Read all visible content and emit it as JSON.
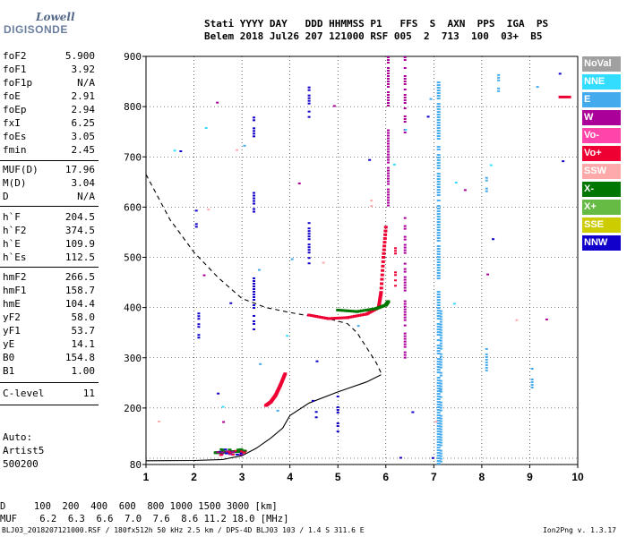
{
  "logo": {
    "line1": "Lowell",
    "line2": "DIGISONDE"
  },
  "header": {
    "line1": "Stati YYYY DAY   DDD HHMMSS P1   FFS  S  AXN  PPS  IGA  PS",
    "line2": "Belem 2018 Jul26 207 121000 RSF 005  2  713  100  03+  B5"
  },
  "params": [
    {
      "k": "foF2",
      "v": "5.900"
    },
    {
      "k": "foF1",
      "v": "3.92"
    },
    {
      "k": "foF1p",
      "v": "N/A"
    },
    {
      "k": "foE",
      "v": "2.91"
    },
    {
      "k": "foEp",
      "v": "2.94"
    },
    {
      "k": "fxI",
      "v": "6.25"
    },
    {
      "k": "foEs",
      "v": "3.05"
    },
    {
      "k": "fmin",
      "v": "2.45"
    },
    {
      "k": "MUF(D)",
      "v": "17.96"
    },
    {
      "k": "M(D)",
      "v": "3.04"
    },
    {
      "k": "D",
      "v": "N/A"
    },
    {
      "k": "h`F",
      "v": "204.5"
    },
    {
      "k": "h`F2",
      "v": "374.5"
    },
    {
      "k": "h`E",
      "v": "109.9"
    },
    {
      "k": "h`Es",
      "v": "112.5"
    },
    {
      "k": "hmF2",
      "v": "266.5"
    },
    {
      "k": "hmF1",
      "v": "158.7"
    },
    {
      "k": "hmE",
      "v": "104.4"
    },
    {
      "k": "yF2",
      "v": "58.0"
    },
    {
      "k": "yF1",
      "v": "53.7"
    },
    {
      "k": "yE",
      "v": "14.1"
    },
    {
      "k": "B0",
      "v": "154.8"
    },
    {
      "k": "B1",
      "v": "1.00"
    },
    {
      "k": "C-level",
      "v": "11"
    }
  ],
  "auto": {
    "line1": "Auto:",
    "line2": "Artist5",
    "line3": "500200"
  },
  "legend": [
    {
      "label": "NoVal",
      "color": "#a0a0a0"
    },
    {
      "label": "NNE",
      "color": "#33ddff"
    },
    {
      "label": "E",
      "color": "#44aaee"
    },
    {
      "label": "W",
      "color": "#aa0099"
    },
    {
      "label": "Vo-",
      "color": "#ff44aa"
    },
    {
      "label": "Vo+",
      "color": "#ee0033"
    },
    {
      "label": "SSW",
      "color": "#ffaaaa"
    },
    {
      "label": "X-",
      "color": "#007700"
    },
    {
      "label": "X+",
      "color": "#66bb44"
    },
    {
      "label": "SSE",
      "color": "#cccc00"
    },
    {
      "label": "NNW",
      "color": "#1100cc"
    }
  ],
  "footer": {
    "line1": "D     100  200  400  600  800 1000 1500 3000 [km]",
    "line2": "MUF    6.2  6.3  6.6  7.0  7.6  8.6 11.2 18.0 [MHz]",
    "file": "BLJ03_2018207121000.RSF / 180fx512h 50 kHz 2.5 km / DPS-4D BLJ03 103 / 1.4 S 311.6 E",
    "version": "Ion2Png v. 1.3.17"
  },
  "chart_data": {
    "type": "scatter",
    "xlim": [
      1,
      10
    ],
    "ylim": [
      80,
      900
    ],
    "x_ticks": [
      "1",
      "2",
      "3",
      "4",
      "5",
      "6",
      "7",
      "8",
      "9",
      "10"
    ],
    "y_ticks": [
      "80",
      "100",
      "200",
      "300",
      "400",
      "500",
      "600",
      "700",
      "800",
      "900"
    ],
    "series": [
      {
        "name": "trace-E",
        "color": "#007700",
        "points": [
          [
            2.45,
            111
          ],
          [
            2.6,
            112
          ],
          [
            2.8,
            113
          ],
          [
            3.0,
            114
          ],
          [
            3.05,
            113
          ]
        ]
      },
      {
        "name": "trace-F1",
        "color": "#ee0033",
        "points": [
          [
            3.5,
            205
          ],
          [
            3.6,
            212
          ],
          [
            3.7,
            225
          ],
          [
            3.8,
            245
          ],
          [
            3.9,
            268
          ]
        ]
      },
      {
        "name": "trace-F2-O",
        "color": "#ee0033",
        "points": [
          [
            4.4,
            385
          ],
          [
            4.8,
            378
          ],
          [
            5.2,
            380
          ],
          [
            5.6,
            387
          ],
          [
            5.85,
            400
          ],
          [
            5.9,
            430
          ],
          [
            5.95,
            500
          ],
          [
            6.0,
            560
          ]
        ]
      },
      {
        "name": "trace-F2-X",
        "color": "#007700",
        "points": [
          [
            5.0,
            395
          ],
          [
            5.4,
            392
          ],
          [
            5.8,
            398
          ],
          [
            6.0,
            405
          ],
          [
            6.05,
            412
          ]
        ]
      }
    ],
    "profile_solid": [
      [
        1.0,
        92
      ],
      [
        2.0,
        93
      ],
      [
        2.6,
        96
      ],
      [
        3.0,
        105
      ],
      [
        3.3,
        120
      ],
      [
        3.6,
        140
      ],
      [
        3.85,
        160
      ],
      [
        4.0,
        185
      ],
      [
        4.4,
        210
      ],
      [
        5.0,
        232
      ],
      [
        5.6,
        252
      ],
      [
        5.9,
        266
      ]
    ],
    "profile_dashed": [
      [
        1.0,
        665
      ],
      [
        1.5,
        575
      ],
      [
        2.0,
        510
      ],
      [
        2.5,
        460
      ],
      [
        3.0,
        418
      ],
      [
        3.5,
        400
      ],
      [
        4.0,
        390
      ],
      [
        4.3,
        385
      ],
      [
        4.8,
        378
      ],
      [
        5.2,
        368
      ],
      [
        5.4,
        350
      ],
      [
        5.6,
        320
      ],
      [
        5.8,
        290
      ],
      [
        5.9,
        270
      ]
    ]
  }
}
